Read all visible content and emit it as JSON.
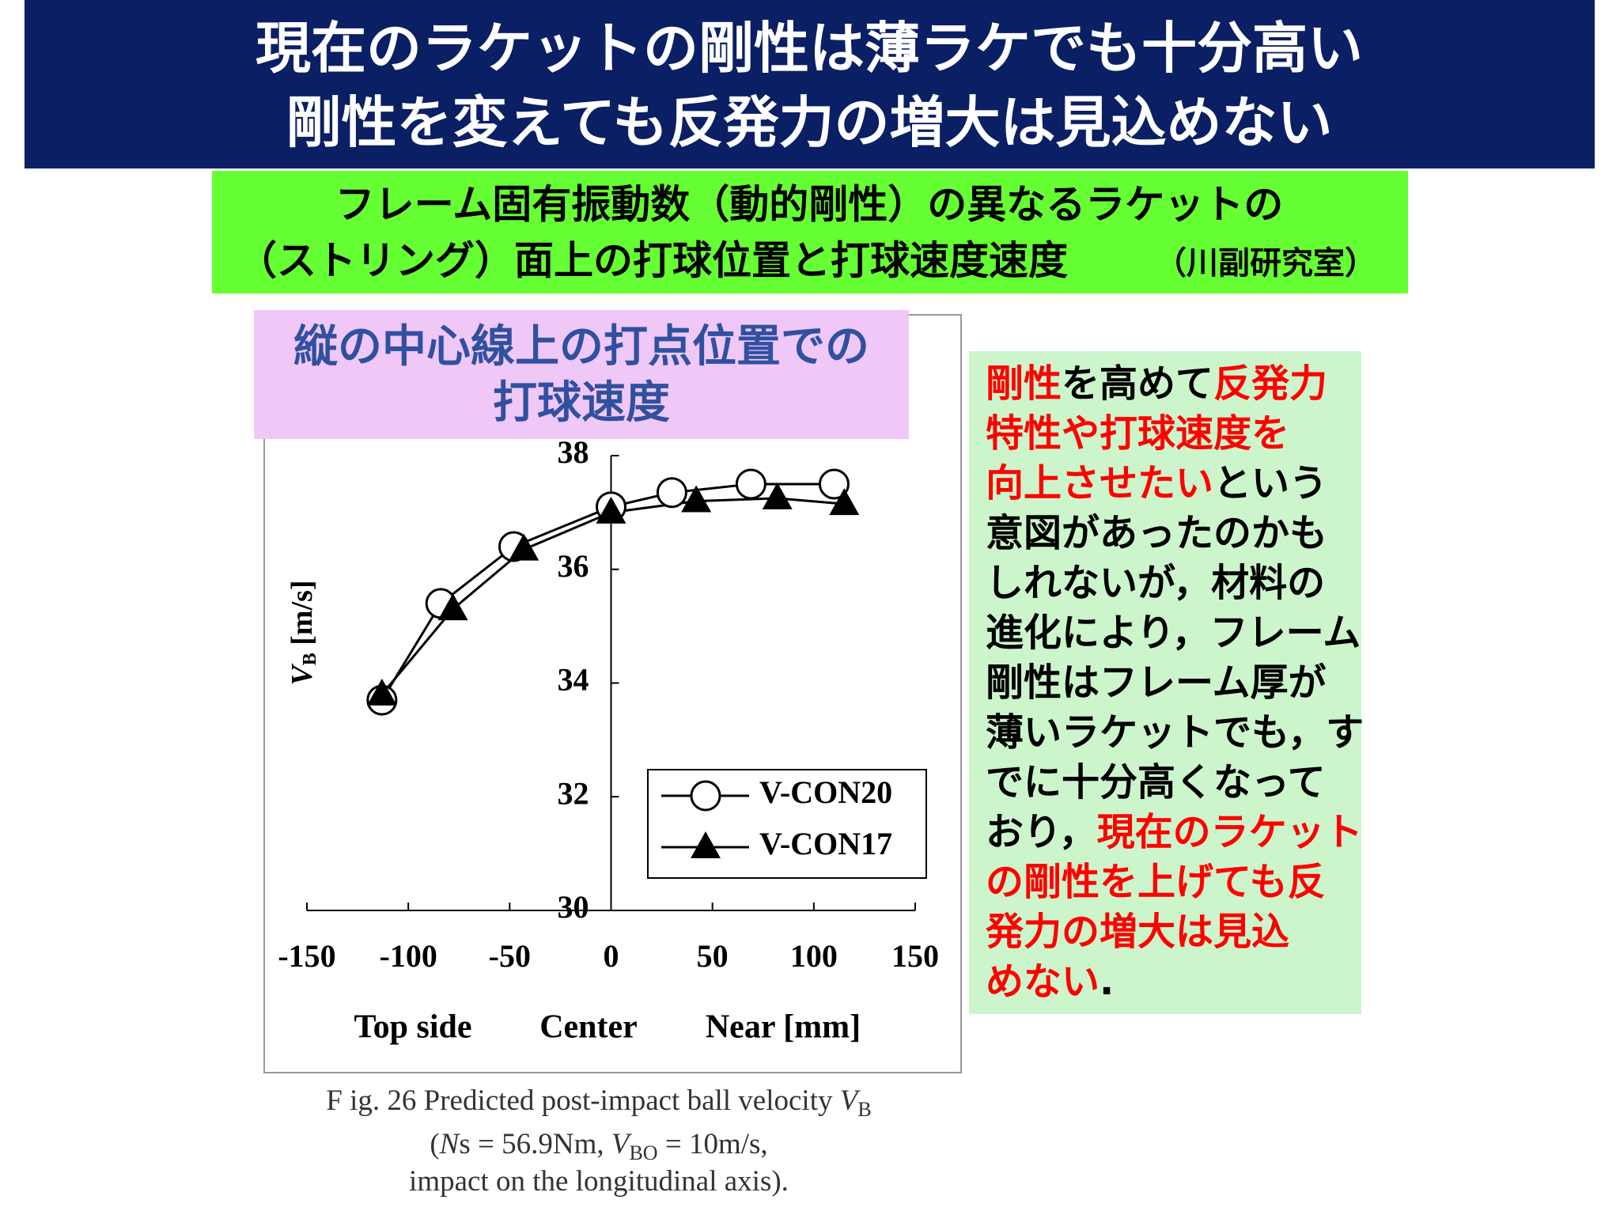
{
  "title": [
    "現在のラケットの剛性は薄ラケでも十分高い",
    "剛性を変えても反発力の増大は見込めない"
  ],
  "subtitle": [
    "フレーム固有振動数（動的剛性）の異なるラケットの",
    "（ストリング）面上の打球位置と打球速度速度",
    "（川副研究室）"
  ],
  "chart_data": {
    "type": "line",
    "title": [
      "縦の中心線上の打点位置での",
      "打球速度"
    ],
    "y_label": [
      "V",
      "B",
      " [m/s]"
    ],
    "x_labels": [
      "Top side",
      "Center",
      "Near [mm]"
    ],
    "xlim": [
      -150,
      150
    ],
    "xticks": [
      -150,
      -100,
      -50,
      0,
      50,
      100,
      150
    ],
    "ylim": [
      30,
      38
    ],
    "yticks": [
      30,
      32,
      34,
      36,
      38
    ],
    "legend": "lower right",
    "series": [
      {
        "name": "V-CON20",
        "marker": "circle",
        "color": "#000000",
        "x": [
          -113,
          -84,
          -48,
          0,
          30,
          69,
          110
        ],
        "values": [
          33.7,
          35.4,
          36.4,
          37.1,
          37.35,
          37.5,
          37.5
        ]
      },
      {
        "name": "V-CON17",
        "marker": "triangle",
        "color": "#000000",
        "x": [
          -113,
          -78,
          -43,
          0,
          42,
          82,
          115
        ],
        "values": [
          33.8,
          35.3,
          36.35,
          37.0,
          37.2,
          37.25,
          37.15
        ]
      }
    ],
    "caption": [
      [
        "F ig. 26 Predicted post-impact ball velocity ",
        "V",
        "B"
      ],
      [
        "(",
        "N",
        "s = 56.9Nm,    ",
        "V",
        "BO",
        " = 10m/s,"
      ],
      [
        "impact on the longitudinal axis)."
      ]
    ]
  },
  "note": [
    [
      {
        "text": "剛性",
        "color": "#ff0000"
      },
      {
        "text": "を高めて",
        "color": "#000000"
      },
      {
        "text": "反発力",
        "color": "#ff0000"
      }
    ],
    [
      {
        "text": "特性や打球速度を",
        "color": "#ff0000"
      }
    ],
    [
      {
        "text": "向上させたい",
        "color": "#ff0000"
      },
      {
        "text": "という",
        "color": "#000000"
      }
    ],
    [
      {
        "text": "意図があったのかも",
        "color": "#000000"
      }
    ],
    [
      {
        "text": "しれないが，材料の",
        "color": "#000000"
      }
    ],
    [
      {
        "text": "進化により，フレーム",
        "color": "#000000"
      }
    ],
    [
      {
        "text": "剛性はフレーム厚が",
        "color": "#000000"
      }
    ],
    [
      {
        "text": "薄いラケットでも，す",
        "color": "#000000"
      }
    ],
    [
      {
        "text": "でに十分高くなって",
        "color": "#000000"
      }
    ],
    [
      {
        "text": "おり，",
        "color": "#000000"
      },
      {
        "text": "現在のラケット",
        "color": "#ff0000"
      }
    ],
    [
      {
        "text": "の剛性を上げても反",
        "color": "#ff0000"
      }
    ],
    [
      {
        "text": "発力の増大は見込",
        "color": "#ff0000"
      }
    ],
    [
      {
        "text": "めない",
        "color": "#ff0000"
      },
      {
        "text": ".",
        "color": "#000000"
      }
    ]
  ]
}
